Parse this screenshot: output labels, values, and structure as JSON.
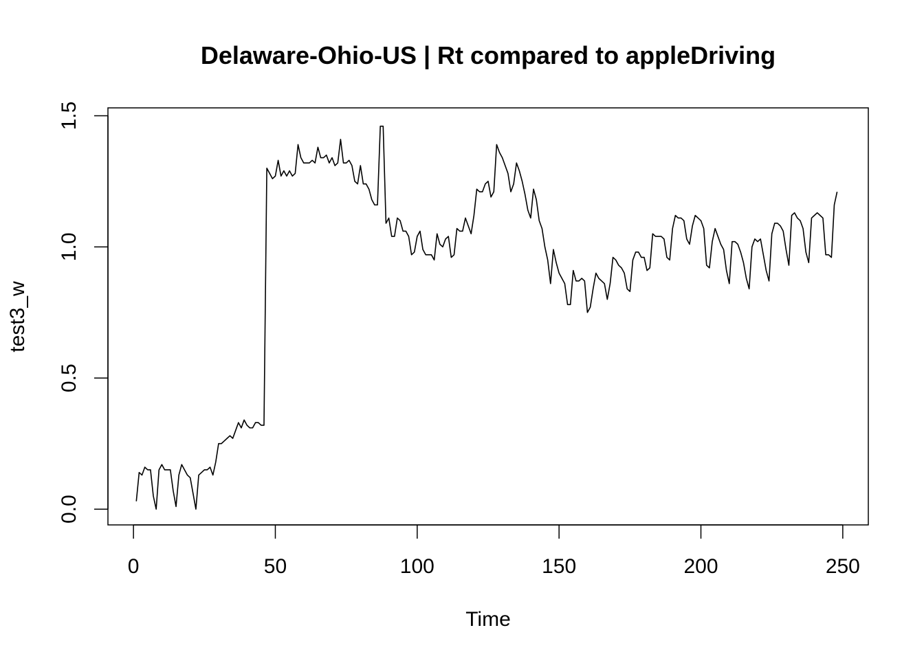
{
  "chart_data": {
    "type": "line",
    "title": "Delaware-Ohio-US | Rt compared to appleDriving",
    "xlabel": "Time",
    "ylabel": "test3_w",
    "xlim": [
      -9,
      259
    ],
    "ylim": [
      -0.06,
      1.53
    ],
    "xticks": [
      0,
      50,
      100,
      150,
      200,
      250
    ],
    "yticks": [
      0.0,
      0.5,
      1.0,
      1.5
    ],
    "xtick_labels": [
      "0",
      "50",
      "100",
      "150",
      "200",
      "250"
    ],
    "ytick_labels": [
      "0.0",
      "0.5",
      "1.0",
      "1.5"
    ],
    "grid": false,
    "legend": "none",
    "line_color": "#000000",
    "series": [
      {
        "x_start": 1,
        "values": [
          0.03,
          0.14,
          0.13,
          0.16,
          0.15,
          0.15,
          0.05,
          0.0,
          0.15,
          0.17,
          0.15,
          0.15,
          0.15,
          0.07,
          0.01,
          0.13,
          0.17,
          0.15,
          0.13,
          0.12,
          0.06,
          0.0,
          0.13,
          0.14,
          0.15,
          0.15,
          0.16,
          0.13,
          0.18,
          0.25,
          0.25,
          0.26,
          0.27,
          0.28,
          0.27,
          0.3,
          0.33,
          0.31,
          0.34,
          0.32,
          0.31,
          0.31,
          0.33,
          0.33,
          0.32,
          0.32,
          1.3,
          1.28,
          1.26,
          1.27,
          1.33,
          1.27,
          1.29,
          1.27,
          1.29,
          1.27,
          1.28,
          1.39,
          1.34,
          1.32,
          1.32,
          1.32,
          1.33,
          1.32,
          1.38,
          1.34,
          1.34,
          1.35,
          1.32,
          1.34,
          1.31,
          1.32,
          1.41,
          1.32,
          1.32,
          1.33,
          1.31,
          1.25,
          1.24,
          1.31,
          1.24,
          1.24,
          1.22,
          1.18,
          1.16,
          1.16,
          1.46,
          1.46,
          1.09,
          1.11,
          1.04,
          1.04,
          1.11,
          1.1,
          1.06,
          1.06,
          1.04,
          0.97,
          0.98,
          1.04,
          1.06,
          0.99,
          0.97,
          0.97,
          0.97,
          0.95,
          1.05,
          1.01,
          1.0,
          1.03,
          1.04,
          0.96,
          0.97,
          1.07,
          1.06,
          1.06,
          1.11,
          1.08,
          1.05,
          1.12,
          1.22,
          1.21,
          1.21,
          1.24,
          1.25,
          1.19,
          1.21,
          1.39,
          1.36,
          1.34,
          1.31,
          1.28,
          1.21,
          1.24,
          1.32,
          1.29,
          1.25,
          1.2,
          1.14,
          1.11,
          1.22,
          1.18,
          1.1,
          1.07,
          1.0,
          0.95,
          0.86,
          0.99,
          0.94,
          0.9,
          0.88,
          0.86,
          0.78,
          0.78,
          0.91,
          0.87,
          0.87,
          0.88,
          0.87,
          0.75,
          0.77,
          0.84,
          0.9,
          0.88,
          0.87,
          0.86,
          0.8,
          0.86,
          0.96,
          0.95,
          0.93,
          0.92,
          0.9,
          0.84,
          0.83,
          0.95,
          0.98,
          0.98,
          0.96,
          0.96,
          0.91,
          0.92,
          1.05,
          1.04,
          1.04,
          1.04,
          1.03,
          0.96,
          0.95,
          1.07,
          1.12,
          1.11,
          1.11,
          1.1,
          1.03,
          1.01,
          1.08,
          1.12,
          1.11,
          1.1,
          1.07,
          0.93,
          0.92,
          1.02,
          1.07,
          1.04,
          1.01,
          0.99,
          0.91,
          0.86,
          1.02,
          1.02,
          1.01,
          0.98,
          0.94,
          0.88,
          0.84,
          1.0,
          1.03,
          1.02,
          1.03,
          0.97,
          0.91,
          0.87,
          1.05,
          1.09,
          1.09,
          1.08,
          1.06,
          0.99,
          0.93,
          1.12,
          1.13,
          1.11,
          1.1,
          1.07,
          0.98,
          0.94,
          1.11,
          1.12,
          1.13,
          1.12,
          1.11,
          0.97,
          0.97,
          0.96,
          1.16,
          1.21
        ]
      }
    ]
  }
}
